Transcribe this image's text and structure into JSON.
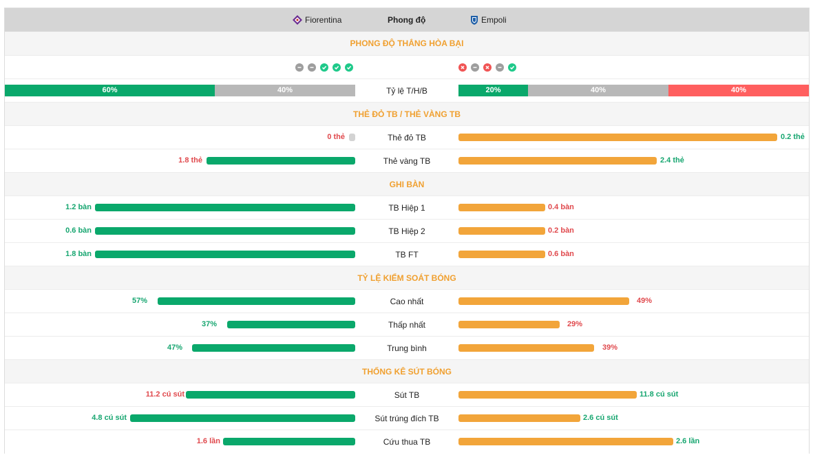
{
  "header": {
    "home_team": "Fiorentina",
    "middle": "Phong độ",
    "away_team": "Empoli"
  },
  "sections": {
    "form": "PHONG ĐỘ THẮNG HÒA BẠI",
    "cards": "THẺ ĐỎ TB / THẺ VÀNG TB",
    "goals": "GHI BÀN",
    "possession": "TỶ LỆ KIỂM SOÁT BÓNG",
    "shots": "THỐNG KÊ SÚT BÓNG"
  },
  "form": {
    "home_results": [
      "draw",
      "draw",
      "win",
      "win",
      "win"
    ],
    "away_results": [
      "loss",
      "draw",
      "loss",
      "draw",
      "win"
    ],
    "colors": {
      "win": "#1fc98a",
      "draw": "#9e9e9e",
      "loss": "#f05454"
    }
  },
  "ratio": {
    "label": "Tỷ lệ T/H/B",
    "home": {
      "win": "60%",
      "draw": "40%"
    },
    "away": {
      "win": "20%",
      "draw": "40%",
      "loss": "40%"
    },
    "home_values": {
      "win": 60,
      "draw": 40,
      "loss": 0
    },
    "away_values": {
      "win": 20,
      "draw": 40,
      "loss": 40
    }
  },
  "rows": {
    "red_card": {
      "label": "Thẻ đỏ TB",
      "home": "0 thẻ",
      "away": "0.2 thẻ"
    },
    "yellow_card": {
      "label": "Thẻ vàng TB",
      "home": "1.8 thẻ",
      "away": "2.4 thẻ"
    },
    "half1": {
      "label": "TB Hiệp 1",
      "home": "1.2 bàn",
      "away": "0.4 bàn"
    },
    "half2": {
      "label": "TB Hiệp 2",
      "home": "0.6 bàn",
      "away": "0.2 bàn"
    },
    "ft": {
      "label": "TB FT",
      "home": "1.8 bàn",
      "away": "0.6 bàn"
    },
    "poss_max": {
      "label": "Cao nhất",
      "home": "57%",
      "away": "49%"
    },
    "poss_min": {
      "label": "Thấp nhất",
      "home": "37%",
      "away": "29%"
    },
    "poss_avg": {
      "label": "Trung bình",
      "home": "47%",
      "away": "39%"
    },
    "shots": {
      "label": "Sút TB",
      "home": "11.2 cú sút",
      "away": "11.8 cú sút"
    },
    "shots_on": {
      "label": "Sút trúng đích TB",
      "home": "4.8 cú sút",
      "away": "2.6 cú sút"
    },
    "saves": {
      "label": "Cứu thua TB",
      "home": "1.6 lần",
      "away": "2.6 lần"
    }
  },
  "colors": {
    "home_bar": "#0aa86b",
    "away_bar": "#f2a53a",
    "section_title": "#f0a030",
    "value_better": "#17a670",
    "value_worse": "#e0494d"
  }
}
